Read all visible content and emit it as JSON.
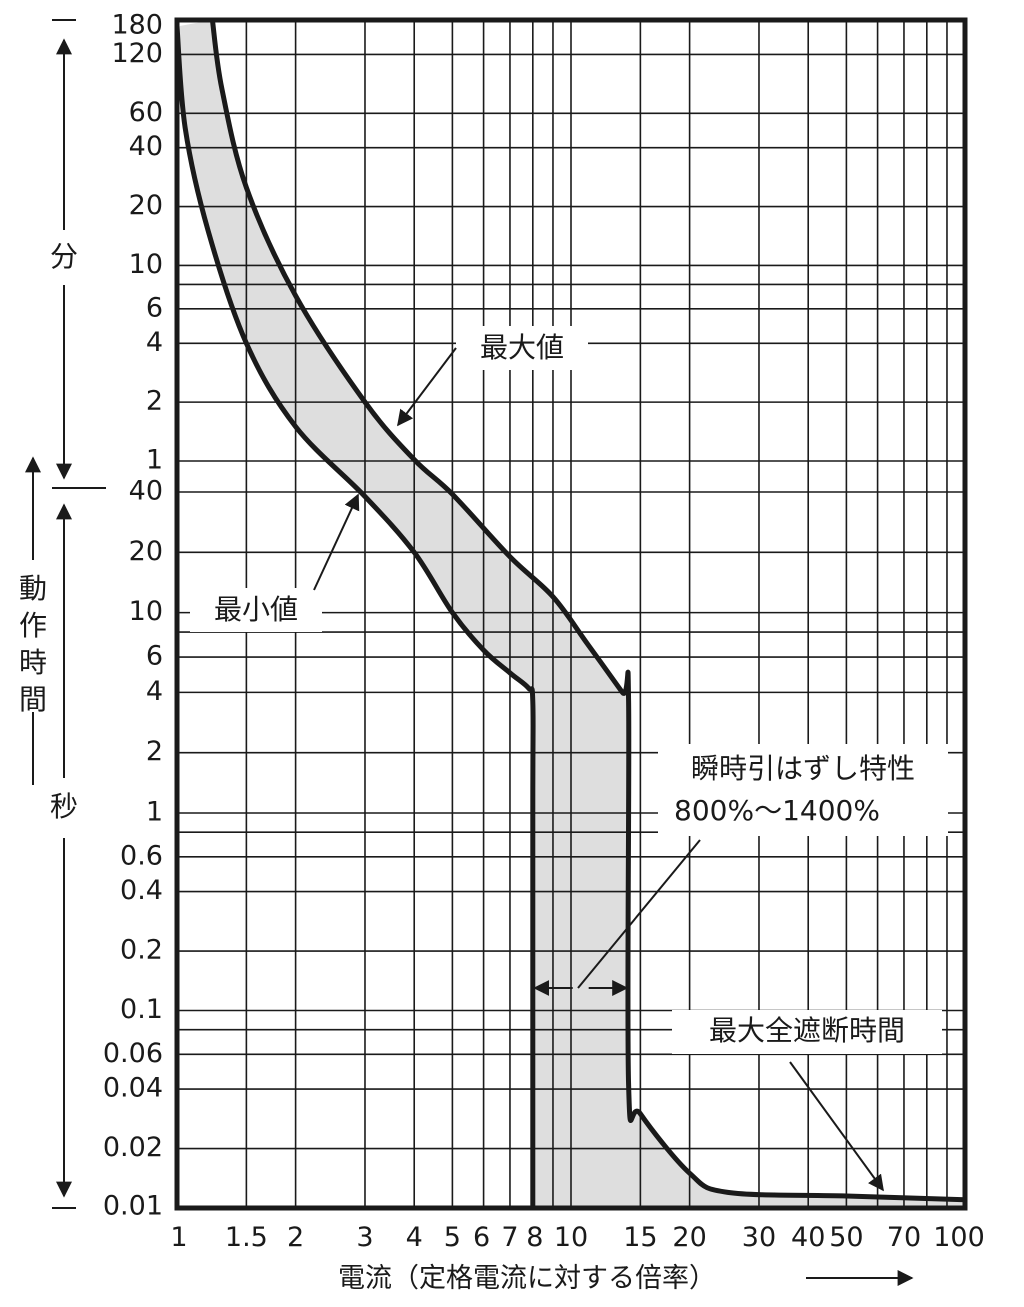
{
  "chart_data": {
    "type": "line",
    "xlabel": "電流（定格電流に対する倍率）",
    "x_scale": "log",
    "xlim": [
      1,
      100
    ],
    "x_ticks": [
      {
        "v": 1,
        "label": "1"
      },
      {
        "v": 1.5,
        "label": "1.5"
      },
      {
        "v": 2,
        "label": "2"
      },
      {
        "v": 3,
        "label": "3"
      },
      {
        "v": 4,
        "label": "4"
      },
      {
        "v": 5,
        "label": "5"
      },
      {
        "v": 6,
        "label": "6"
      },
      {
        "v": 7,
        "label": "7"
      },
      {
        "v": 8,
        "label": "8"
      },
      {
        "v": 10,
        "label": "10"
      },
      {
        "v": 15,
        "label": "15"
      },
      {
        "v": 20,
        "label": "20"
      },
      {
        "v": 30,
        "label": "30"
      },
      {
        "v": 40,
        "label": "40"
      },
      {
        "v": 50,
        "label": "50"
      },
      {
        "v": 70,
        "label": "70"
      },
      {
        "v": 100,
        "label": "100"
      }
    ],
    "x_gridlines": [
      1,
      1.5,
      2,
      3,
      4,
      5,
      6,
      7,
      8,
      9,
      10,
      15,
      20,
      30,
      40,
      50,
      60,
      70,
      80,
      90,
      100
    ],
    "y_scale": "log",
    "y_unit": "seconds",
    "ylim_seconds": [
      0.01,
      10800
    ],
    "y_ticks": [
      {
        "s": 0.01,
        "label": "0.01"
      },
      {
        "s": 0.02,
        "label": "0.02"
      },
      {
        "s": 0.04,
        "label": "0.04"
      },
      {
        "s": 0.06,
        "label": "0.06"
      },
      {
        "s": 0.1,
        "label": "0.1"
      },
      {
        "s": 0.2,
        "label": "0.2"
      },
      {
        "s": 0.4,
        "label": "0.4"
      },
      {
        "s": 0.6,
        "label": "0.6"
      },
      {
        "s": 1,
        "label": "1"
      },
      {
        "s": 2,
        "label": "2"
      },
      {
        "s": 4,
        "label": "4"
      },
      {
        "s": 6,
        "label": "6"
      },
      {
        "s": 10,
        "label": "10"
      },
      {
        "s": 20,
        "label": "20"
      },
      {
        "s": 40,
        "label": "40"
      },
      {
        "s": 60,
        "label": "1"
      },
      {
        "s": 120,
        "label": "2"
      },
      {
        "s": 240,
        "label": "4"
      },
      {
        "s": 360,
        "label": "6"
      },
      {
        "s": 600,
        "label": "10"
      },
      {
        "s": 1200,
        "label": "20"
      },
      {
        "s": 2400,
        "label": "40"
      },
      {
        "s": 3600,
        "label": "60"
      },
      {
        "s": 7200,
        "label": "120"
      },
      {
        "s": 10800,
        "label": "180"
      }
    ],
    "y_gridlines_seconds": [
      0.01,
      0.02,
      0.04,
      0.06,
      0.08,
      0.1,
      0.2,
      0.4,
      0.6,
      0.8,
      1,
      2,
      4,
      6,
      8,
      10,
      20,
      40,
      60,
      120,
      240,
      360,
      480,
      600,
      1200,
      2400,
      3600,
      7200,
      10800
    ],
    "y_unit_labels": {
      "minutes": "分",
      "seconds": "秒",
      "title": "動作時間"
    },
    "grid": true,
    "fill_between": true,
    "fill_color": "#dedede",
    "line_color": "#1a1a1a",
    "series": [
      {
        "name": "最大値",
        "x": [
          1.23,
          1.3,
          1.5,
          2,
          3,
          4,
          5,
          7,
          9,
          11,
          13.5,
          14,
          14,
          15,
          20,
          25,
          50,
          100
        ],
        "y": [
          10800,
          4800,
          1500,
          420,
          120,
          61,
          39,
          19,
          12,
          7,
          4,
          3.6,
          0.042,
          0.03,
          0.015,
          0.012,
          0.0115,
          0.011
        ]
      },
      {
        "name": "最小値",
        "x": [
          1,
          1.05,
          1.2,
          1.5,
          2,
          3,
          4,
          5,
          6,
          7,
          7.8,
          8,
          8,
          8
        ],
        "y": [
          10000,
          3000,
          900,
          240,
          90,
          38,
          20,
          10,
          6.5,
          5,
          4.2,
          3.6,
          1,
          0.01
        ]
      }
    ],
    "annotations": [
      {
        "text": "最大値",
        "target_x": 3.5,
        "target_y": 75
      },
      {
        "text": "最小値",
        "target_x": 3.3,
        "target_y": 40
      },
      {
        "text": "瞬時引はずし特性",
        "subtext": "800%〜1400%",
        "span_x": [
          8,
          14
        ],
        "at_y": 0.13
      },
      {
        "text": "最大全遮断時間",
        "target_x": 70,
        "target_y": 0.0115
      }
    ]
  }
}
